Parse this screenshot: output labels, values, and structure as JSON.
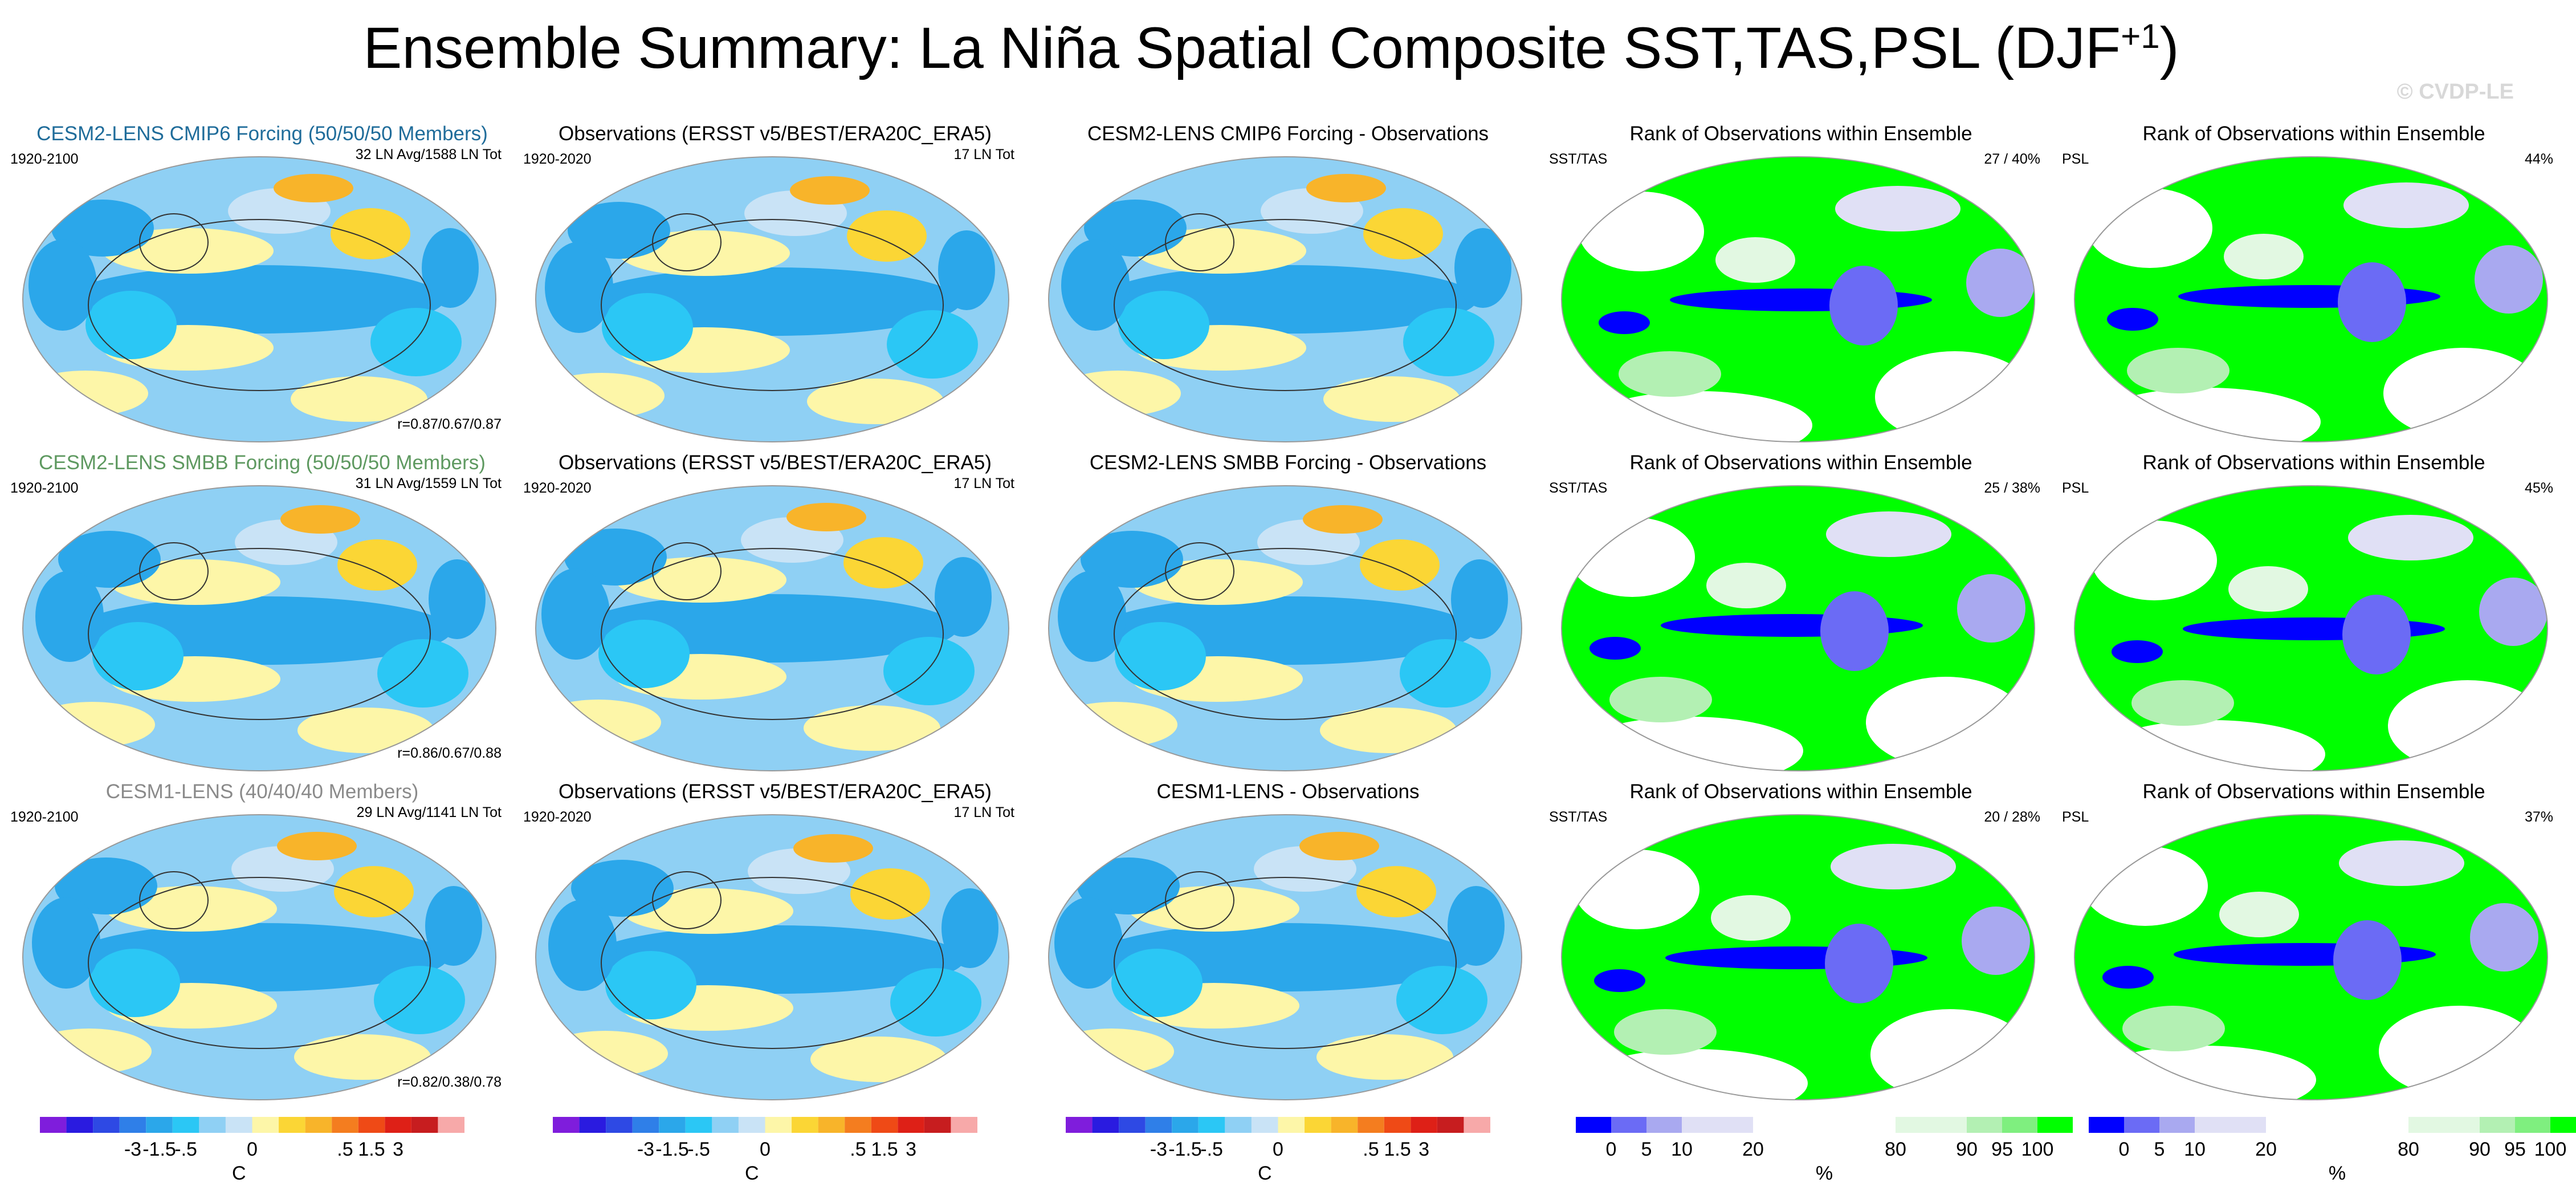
{
  "title": "Ensemble Summary: La Niña Spatial Composite SST,TAS,PSL (DJF",
  "title_sup": "+1",
  "watermark": "© CVDP-LE",
  "colors": {
    "diverging": [
      "#7f1ddc",
      "#2a1be0",
      "#2e49e4",
      "#2f7fe8",
      "#2ba7ea",
      "#2bc7f5",
      "#8fd0f4",
      "#c9e3f6",
      "#fdf6a8",
      "#fbd635",
      "#f8b42a",
      "#f47d1f",
      "#ef4a16",
      "#de2017",
      "#c71d1f",
      "#f7a9a9"
    ],
    "rank": [
      "#0000ff",
      "#6b6bf5",
      "#a9a9f0",
      "#e0e0f5",
      "#ffffff",
      "#ffffff",
      "#e2f8e2",
      "#b3f0b3",
      "#7fef7f",
      "#00ff00"
    ]
  },
  "chart_data": [
    {
      "type": "heatmap",
      "row": 1,
      "col": 1,
      "title": "CESM2-LENS CMIP6 Forcing (50/50/50 Members)",
      "period": "1920-2100",
      "count": "32 LN Avg/1588 LN Tot",
      "corr": "r=0.87/0.67/0.87"
    },
    {
      "type": "heatmap",
      "row": 1,
      "col": 2,
      "title": "Observations (ERSST v5/BEST/ERA20C_ERA5)",
      "period": "1920-2020",
      "count": "17 LN Tot"
    },
    {
      "type": "heatmap",
      "row": 1,
      "col": 3,
      "title": "CESM2-LENS CMIP6 Forcing - Observations"
    },
    {
      "type": "heatmap",
      "row": 1,
      "col": 4,
      "title": "Rank of Observations within Ensemble",
      "variable": "SST/TAS",
      "stat": "27 /  40%"
    },
    {
      "type": "heatmap",
      "row": 1,
      "col": 5,
      "title": "Rank of Observations within Ensemble",
      "variable": "PSL",
      "stat": "44%"
    },
    {
      "type": "heatmap",
      "row": 2,
      "col": 1,
      "title": "CESM2-LENS SMBB Forcing (50/50/50 Members)",
      "period": "1920-2100",
      "count": "31 LN Avg/1559 LN Tot",
      "corr": "r=0.86/0.67/0.88"
    },
    {
      "type": "heatmap",
      "row": 2,
      "col": 2,
      "title": "Observations (ERSST v5/BEST/ERA20C_ERA5)",
      "period": "1920-2020",
      "count": "17 LN Tot"
    },
    {
      "type": "heatmap",
      "row": 2,
      "col": 3,
      "title": "CESM2-LENS SMBB Forcing - Observations"
    },
    {
      "type": "heatmap",
      "row": 2,
      "col": 4,
      "title": "Rank of Observations within Ensemble",
      "variable": "SST/TAS",
      "stat": "25 /  38%"
    },
    {
      "type": "heatmap",
      "row": 2,
      "col": 5,
      "title": "Rank of Observations within Ensemble",
      "variable": "PSL",
      "stat": "45%"
    },
    {
      "type": "heatmap",
      "row": 3,
      "col": 1,
      "title": "CESM1-LENS (40/40/40 Members)",
      "period": "1920-2100",
      "count": "29 LN Avg/1141 LN Tot",
      "corr": "r=0.82/0.38/0.78"
    },
    {
      "type": "heatmap",
      "row": 3,
      "col": 2,
      "title": "Observations (ERSST v5/BEST/ERA20C_ERA5)",
      "period": "1920-2020",
      "count": "17 LN Tot"
    },
    {
      "type": "heatmap",
      "row": 3,
      "col": 3,
      "title": "CESM1-LENS - Observations"
    },
    {
      "type": "heatmap",
      "row": 3,
      "col": 4,
      "title": "Rank of Observations within Ensemble",
      "variable": "SST/TAS",
      "stat": "20 /  28%"
    },
    {
      "type": "heatmap",
      "row": 3,
      "col": 5,
      "title": "Rank of Observations within Ensemble",
      "variable": "PSL",
      "stat": "37%"
    }
  ],
  "colorbars": {
    "temperature": {
      "ticks": [
        "-3",
        "-1.5",
        "-.5",
        "0",
        ".5",
        "1.5",
        "3"
      ],
      "unit": "C"
    },
    "rank": {
      "ticks": [
        "0",
        "5",
        "10",
        "20",
        "80",
        "90",
        "95",
        "100"
      ],
      "unit": "%"
    }
  }
}
